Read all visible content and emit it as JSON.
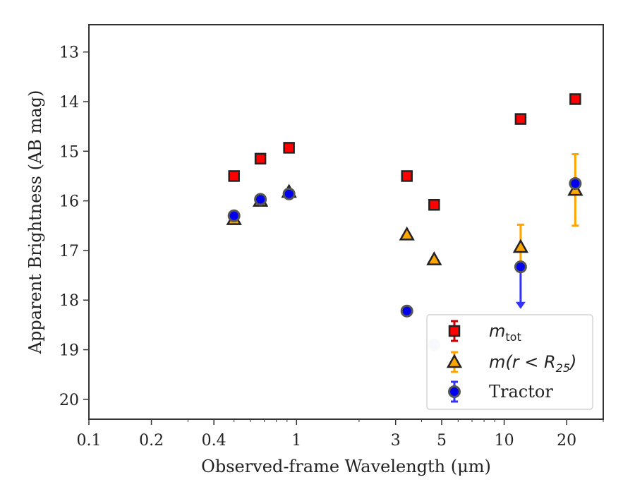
{
  "chart_data": {
    "type": "scatter",
    "xlabel": "Observed-frame Wavelength (μm)",
    "ylabel": "Apparent Brightness (AB mag)",
    "xscale": "log",
    "xlim": [
      0.1,
      30
    ],
    "ylim": [
      20.4,
      12.45
    ],
    "y_inverted": true,
    "xticks": [
      0.1,
      0.2,
      0.4,
      1,
      3,
      5,
      10,
      20
    ],
    "xtick_labels": [
      "0.1",
      "0.2",
      "0.4",
      "1",
      "3",
      "5",
      "10",
      "20"
    ],
    "yticks": [
      13,
      14,
      15,
      16,
      17,
      18,
      19,
      20
    ],
    "ytick_labels": [
      "13",
      "14",
      "15",
      "16",
      "17",
      "18",
      "19",
      "20"
    ],
    "legend_position": "lower-right",
    "series": [
      {
        "name": "m_tot",
        "legend_main": "m",
        "legend_sub": "tot",
        "marker": "square",
        "color": "#ff0000",
        "points": [
          {
            "x": 0.5,
            "y": 15.5
          },
          {
            "x": 0.67,
            "y": 15.15
          },
          {
            "x": 0.92,
            "y": 14.93
          },
          {
            "x": 3.4,
            "y": 15.5
          },
          {
            "x": 4.6,
            "y": 16.08
          },
          {
            "x": 12.0,
            "y": 14.35
          },
          {
            "x": 22.0,
            "y": 13.95
          }
        ]
      },
      {
        "name": "m(r<R_25)",
        "legend_main": "m(r < R",
        "legend_sub": "25",
        "legend_tail": ")",
        "marker": "triangle",
        "color": "#ffa500",
        "errcolor": "#ffa500",
        "points": [
          {
            "x": 0.5,
            "y": 16.37
          },
          {
            "x": 0.67,
            "y": 16.0
          },
          {
            "x": 0.92,
            "y": 15.82
          },
          {
            "x": 3.4,
            "y": 16.68
          },
          {
            "x": 4.6,
            "y": 17.18
          },
          {
            "x": 12.0,
            "y": 16.93,
            "yerr": [
              0.45,
              0.45
            ]
          },
          {
            "x": 22.0,
            "y": 15.78,
            "yerr": [
              0.72,
              0.72
            ]
          }
        ]
      },
      {
        "name": "Tractor",
        "legend_main": "Tractor",
        "marker": "circle",
        "color": "#0000ee",
        "errcolor": "#3333ff",
        "points": [
          {
            "x": 0.5,
            "y": 16.3,
            "yerr": [
              0.08,
              0.08
            ]
          },
          {
            "x": 0.67,
            "y": 15.97,
            "yerr": [
              0.08,
              0.08
            ]
          },
          {
            "x": 0.92,
            "y": 15.86,
            "yerr": [
              0.08,
              0.08
            ]
          },
          {
            "x": 3.4,
            "y": 18.22,
            "yerr": [
              0.06,
              0.06
            ]
          },
          {
            "x": 4.6,
            "y": 18.9,
            "faded": true
          },
          {
            "x": 12.0,
            "y": 17.33,
            "upper_limit_to": 18.15
          },
          {
            "x": 22.0,
            "y": 15.65,
            "yerr": [
              0.05,
              0.05
            ]
          }
        ]
      }
    ]
  }
}
